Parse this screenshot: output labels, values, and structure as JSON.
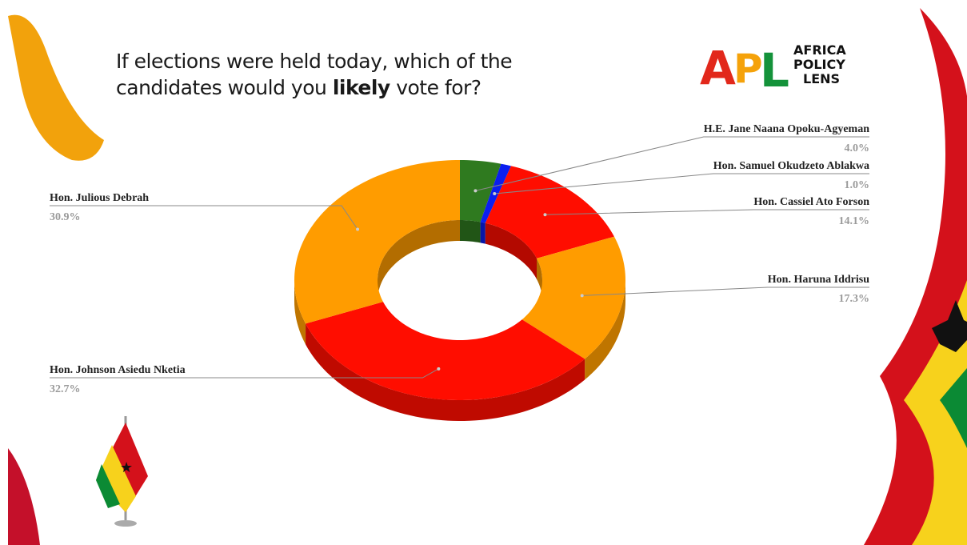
{
  "chart_data": {
    "type": "donut",
    "title": {
      "lead": "If elections were held today, which of the candidates would you",
      "emphasis": "likely",
      "tail": "vote for?"
    },
    "logo": {
      "letters": [
        "A",
        "P",
        "L"
      ],
      "words": [
        "AFRICA",
        "POLICY",
        "LENS"
      ]
    },
    "categories": [
      "H.E. Jane Naana Opoku-Agyeman",
      "Hon. Samuel Okudzeto Ablakwa",
      "Hon. Cassiel Ato Forson",
      "Hon. Haruna Iddrisu",
      "Hon. Johnson Asiedu Nketia",
      "Hon. Julious Debrah"
    ],
    "values": [
      4.0,
      1.0,
      14.1,
      17.3,
      32.7,
      30.9
    ],
    "value_labels": [
      "4.0%",
      "1.0%",
      "14.1%",
      "17.3%",
      "32.7%",
      "30.9%"
    ],
    "colors": [
      "#2f7a1f",
      "#0a1ff0",
      "#ff0d00",
      "#ff9c00",
      "#ff0d00",
      "#ff9c00"
    ]
  }
}
